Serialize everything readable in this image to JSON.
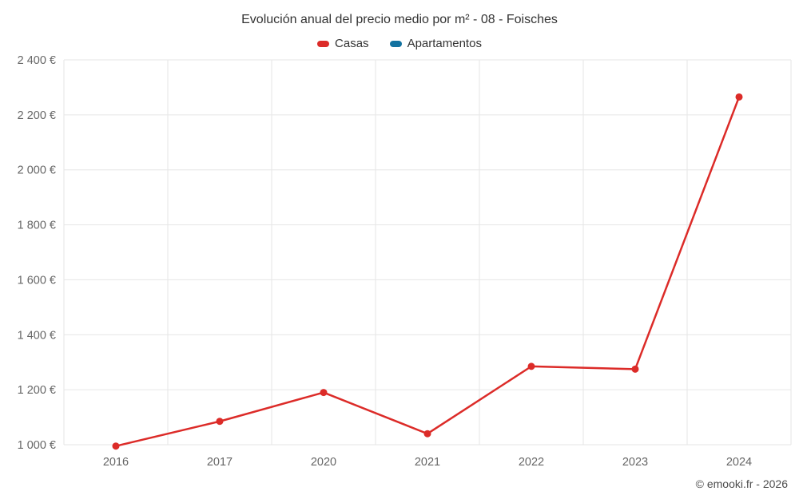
{
  "chart": {
    "copyright": "© emooki.fr - 2026"
  },
  "chart_data": {
    "type": "line",
    "title": "Evolución anual del precio medio por m² - 08 - Foisches",
    "categories": [
      "2016",
      "2017",
      "2020",
      "2021",
      "2022",
      "2023",
      "2024"
    ],
    "series": [
      {
        "name": "Casas",
        "color": "#dc2b28",
        "values": [
          995,
          1085,
          1190,
          1040,
          1285,
          1275,
          2265
        ]
      },
      {
        "name": "Apartamentos",
        "color": "#1272a0",
        "values": []
      }
    ],
    "xlabel": "",
    "ylabel": "",
    "ylim": [
      1000,
      2400
    ],
    "ytick_step": 200,
    "ytick_labels": [
      "1 000 €",
      "1 200 €",
      "1 400 €",
      "1 600 €",
      "1 800 €",
      "2 000 €",
      "2 200 €",
      "2 400 €"
    ],
    "grid": true,
    "grid_color": "#e6e6e6",
    "legend_position": "top",
    "title_color": "#333333",
    "tick_label_color": "#666666"
  }
}
